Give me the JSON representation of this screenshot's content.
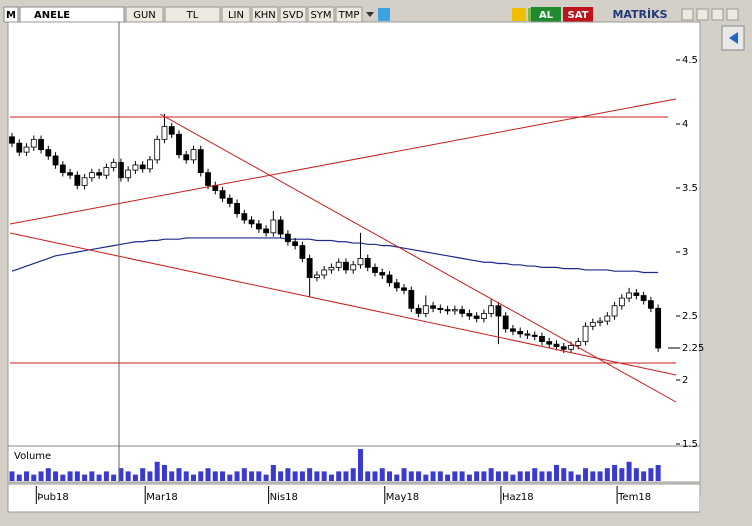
{
  "toolbar": {
    "logo": "M",
    "symbol": "ANELE",
    "buttons": [
      "GUN",
      "TL",
      "LIN",
      "KHN",
      "SVD",
      "SYM",
      "TMP"
    ],
    "buy": "AL",
    "sell": "SAT",
    "brand": "MATRİKS"
  },
  "chart_data": {
    "type": "candlestick",
    "categories": [
      null,
      null,
      null,
      null,
      null,
      "Þub18",
      null,
      null,
      null,
      null,
      null,
      null,
      null,
      null,
      null,
      null,
      null,
      null,
      null,
      null,
      "Mar18",
      null,
      null,
      null,
      null,
      null,
      null,
      null,
      null,
      null,
      null,
      null,
      null,
      null,
      null,
      null,
      null,
      "Nis18",
      null,
      null,
      null,
      null,
      null,
      null,
      null,
      null,
      null,
      null,
      null,
      null,
      null,
      null,
      null,
      "May18",
      null,
      null,
      null,
      null,
      null,
      null,
      null,
      null,
      null,
      null,
      null,
      null,
      null,
      null,
      null,
      "Haz18",
      null,
      null,
      null,
      null,
      null,
      null,
      null,
      null,
      null,
      null,
      null,
      null,
      null,
      null,
      null,
      "Tem18",
      null,
      null,
      null,
      null
    ],
    "open": [
      3.9,
      3.85,
      3.78,
      3.82,
      3.88,
      3.8,
      3.75,
      3.68,
      3.62,
      3.6,
      3.52,
      3.58,
      3.62,
      3.6,
      3.66,
      3.7,
      3.58,
      3.64,
      3.68,
      3.65,
      3.72,
      3.88,
      3.98,
      3.92,
      3.76,
      3.72,
      3.8,
      3.62,
      3.52,
      3.48,
      3.42,
      3.38,
      3.3,
      3.25,
      3.22,
      3.18,
      3.15,
      3.25,
      3.14,
      3.08,
      3.05,
      2.95,
      2.8,
      2.82,
      2.86,
      2.88,
      2.92,
      2.86,
      2.9,
      2.95,
      2.88,
      2.84,
      2.82,
      2.76,
      2.72,
      2.7,
      2.56,
      2.52,
      2.58,
      2.56,
      2.55,
      2.54,
      2.55,
      2.52,
      2.5,
      2.48,
      2.52,
      2.58,
      2.5,
      2.4,
      2.38,
      2.36,
      2.35,
      2.34,
      2.3,
      2.28,
      2.26,
      2.24,
      2.27,
      2.3,
      2.42,
      2.45,
      2.46,
      2.5,
      2.58,
      2.64,
      2.68,
      2.66,
      2.62,
      2.56
    ],
    "high": [
      3.93,
      3.88,
      3.85,
      3.91,
      3.91,
      3.83,
      3.78,
      3.71,
      3.65,
      3.63,
      3.61,
      3.65,
      3.65,
      3.69,
      3.73,
      3.73,
      3.67,
      3.71,
      3.71,
      3.75,
      3.91,
      4.08,
      4.01,
      3.95,
      3.79,
      3.83,
      3.83,
      3.65,
      3.55,
      3.51,
      3.45,
      3.41,
      3.33,
      3.28,
      3.25,
      3.21,
      3.32,
      3.28,
      3.17,
      3.11,
      3.08,
      2.98,
      2.85,
      2.89,
      2.91,
      2.95,
      2.95,
      2.93,
      3.15,
      2.98,
      2.91,
      2.87,
      2.85,
      2.79,
      2.75,
      2.73,
      2.59,
      2.66,
      2.61,
      2.59,
      2.58,
      2.58,
      2.58,
      2.55,
      2.53,
      2.55,
      2.63,
      2.61,
      2.53,
      2.43,
      2.41,
      2.39,
      2.38,
      2.37,
      2.33,
      2.31,
      2.29,
      2.3,
      2.33,
      2.45,
      2.48,
      2.49,
      2.53,
      2.61,
      2.67,
      2.72,
      2.71,
      2.69,
      2.65,
      2.59
    ],
    "low": [
      3.82,
      3.75,
      3.75,
      3.79,
      3.77,
      3.72,
      3.65,
      3.59,
      3.57,
      3.49,
      3.49,
      3.55,
      3.57,
      3.57,
      3.63,
      3.55,
      3.55,
      3.61,
      3.62,
      3.62,
      3.69,
      3.85,
      3.89,
      3.73,
      3.69,
      3.69,
      3.59,
      3.49,
      3.45,
      3.39,
      3.35,
      3.27,
      3.22,
      3.19,
      3.15,
      3.12,
      3.12,
      3.11,
      3.05,
      3.02,
      2.92,
      2.65,
      2.77,
      2.79,
      2.83,
      2.85,
      2.83,
      2.83,
      2.87,
      2.85,
      2.81,
      2.79,
      2.73,
      2.69,
      2.67,
      2.53,
      2.49,
      2.49,
      2.53,
      2.52,
      2.51,
      2.51,
      2.49,
      2.47,
      2.45,
      2.45,
      2.49,
      2.28,
      2.37,
      2.35,
      2.33,
      2.32,
      2.31,
      2.27,
      2.25,
      2.23,
      2.21,
      2.21,
      2.24,
      2.27,
      2.39,
      2.42,
      2.43,
      2.47,
      2.55,
      2.61,
      2.63,
      2.59,
      2.53,
      2.22
    ],
    "close": [
      3.85,
      3.78,
      3.82,
      3.88,
      3.8,
      3.75,
      3.68,
      3.62,
      3.6,
      3.52,
      3.58,
      3.62,
      3.6,
      3.66,
      3.7,
      3.58,
      3.64,
      3.68,
      3.65,
      3.72,
      3.88,
      3.98,
      3.92,
      3.76,
      3.72,
      3.8,
      3.62,
      3.52,
      3.48,
      3.42,
      3.38,
      3.3,
      3.25,
      3.22,
      3.18,
      3.15,
      3.25,
      3.14,
      3.08,
      3.05,
      2.95,
      2.8,
      2.82,
      2.86,
      2.88,
      2.92,
      2.86,
      2.9,
      2.95,
      2.88,
      2.84,
      2.82,
      2.76,
      2.72,
      2.7,
      2.56,
      2.52,
      2.58,
      2.56,
      2.55,
      2.54,
      2.55,
      2.52,
      2.5,
      2.48,
      2.52,
      2.58,
      2.5,
      2.4,
      2.38,
      2.36,
      2.35,
      2.34,
      2.3,
      2.28,
      2.26,
      2.24,
      2.27,
      2.3,
      2.42,
      2.45,
      2.46,
      2.5,
      2.58,
      2.64,
      2.68,
      2.66,
      2.62,
      2.56,
      2.25
    ],
    "ma": {
      "color": "#1c2a8c",
      "values": [
        2.85,
        2.87,
        2.89,
        2.91,
        2.93,
        2.95,
        2.97,
        2.98,
        2.99,
        3.0,
        3.01,
        3.02,
        3.03,
        3.04,
        3.05,
        3.06,
        3.07,
        3.08,
        3.08,
        3.09,
        3.09,
        3.1,
        3.1,
        3.1,
        3.11,
        3.11,
        3.11,
        3.11,
        3.11,
        3.11,
        3.11,
        3.11,
        3.11,
        3.11,
        3.11,
        3.11,
        3.11,
        3.11,
        3.1,
        3.1,
        3.1,
        3.1,
        3.09,
        3.09,
        3.09,
        3.08,
        3.08,
        3.07,
        3.07,
        3.06,
        3.06,
        3.05,
        3.05,
        3.04,
        3.03,
        3.02,
        3.01,
        3.0,
        2.99,
        2.98,
        2.97,
        2.96,
        2.95,
        2.94,
        2.93,
        2.92,
        2.92,
        2.91,
        2.91,
        2.9,
        2.9,
        2.89,
        2.89,
        2.88,
        2.88,
        2.88,
        2.87,
        2.87,
        2.87,
        2.86,
        2.86,
        2.86,
        2.86,
        2.85,
        2.85,
        2.85,
        2.85,
        2.84,
        2.84,
        2.84
      ]
    },
    "ylim": [
      1.5,
      4.8
    ],
    "yticks": [
      1.5,
      2,
      2.5,
      3,
      3.5,
      4,
      4.5
    ],
    "last_price": 2.25,
    "volume": {
      "label": "Volume",
      "color": "#3a3ad0",
      "ylim": [
        0,
        10
      ],
      "values": [
        3,
        2,
        3,
        2,
        3,
        4,
        3,
        2,
        3,
        3,
        2,
        3,
        2,
        3,
        2,
        4,
        3,
        2,
        4,
        3,
        6,
        5,
        3,
        4,
        3,
        2,
        3,
        4,
        3,
        3,
        2,
        3,
        4,
        3,
        3,
        2,
        5,
        3,
        4,
        3,
        3,
        4,
        3,
        3,
        2,
        3,
        3,
        4,
        10,
        3,
        3,
        4,
        3,
        2,
        4,
        3,
        3,
        2,
        3,
        3,
        2,
        3,
        3,
        2,
        3,
        3,
        4,
        3,
        3,
        2,
        3,
        3,
        4,
        3,
        3,
        5,
        4,
        3,
        2,
        4,
        3,
        3,
        4,
        5,
        4,
        6,
        4,
        3,
        4,
        5
      ]
    }
  }
}
